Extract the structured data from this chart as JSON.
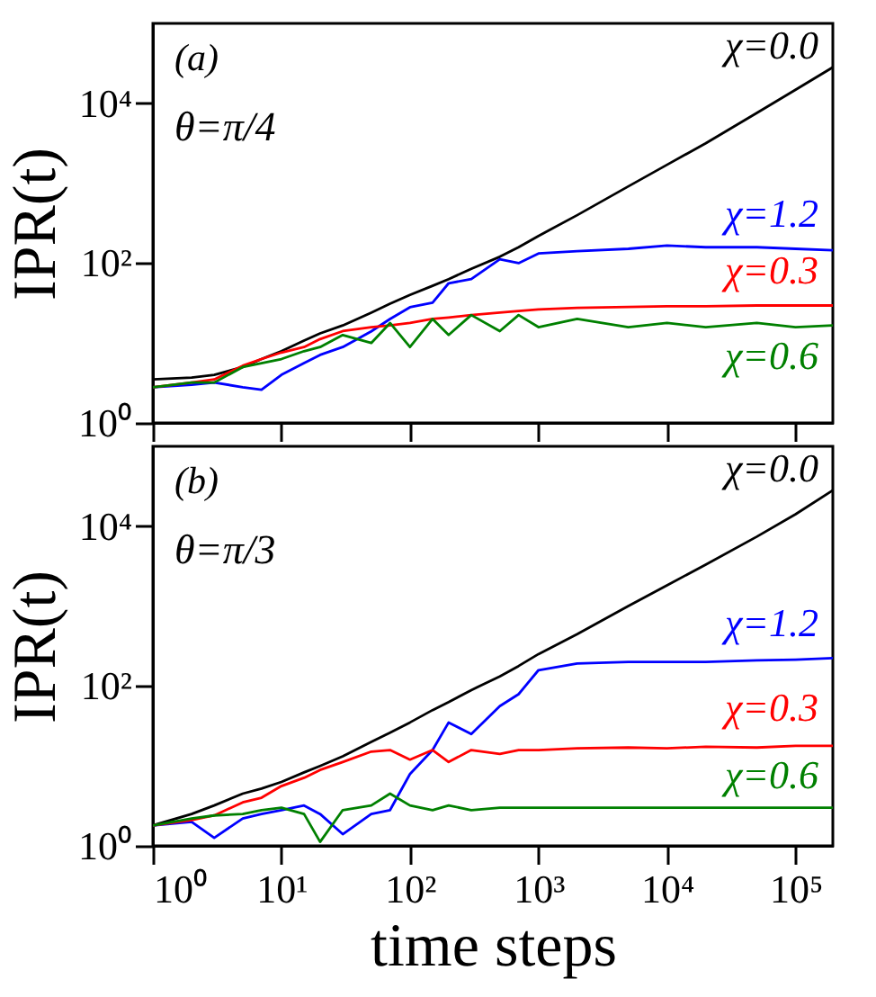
{
  "chart_data": [
    {
      "type": "line",
      "annotations": [
        "(a)",
        "θ=π/4"
      ],
      "ylabel": "IPR(t)",
      "log": "xy",
      "tick_labels": "y",
      "xlim": [
        1,
        195000
      ],
      "ylim": [
        1,
        100000
      ],
      "xticks": [
        {
          "value": 1,
          "label": null
        },
        {
          "value": 10,
          "label": null
        },
        {
          "value": 100,
          "label": null
        },
        {
          "value": 1000,
          "label": null
        },
        {
          "value": 10000,
          "label": null
        },
        {
          "value": 100000,
          "label": null
        }
      ],
      "yticks": [
        {
          "value": 1,
          "label": "10⁰"
        },
        {
          "value": 100,
          "label": "10²"
        },
        {
          "value": 10000,
          "label": "10⁴"
        }
      ],
      "x": [
        1,
        2,
        3,
        5,
        7,
        10,
        15,
        20,
        30,
        50,
        70,
        100,
        150,
        200,
        300,
        500,
        700,
        1000,
        2000,
        5000,
        10000,
        20000,
        50000,
        100000,
        195000
      ],
      "series": [
        {
          "name": "χ=0.0",
          "color": "#000000",
          "values": [
            3.5,
            3.7,
            4,
            5,
            6.3,
            7.9,
            10.7,
            13.2,
            16.6,
            24,
            31,
            40,
            52,
            63,
            85,
            120,
            158,
            219,
            398,
            912,
            1700,
            3160,
            7590,
            14800,
            28200
          ]
        },
        {
          "name": "χ=1.2",
          "color": "#0000ff",
          "values": [
            2.8,
            3,
            3.2,
            2.8,
            2.6,
            4,
            5.6,
            7.1,
            8.9,
            14,
            20,
            28,
            32,
            56,
            63,
            112,
            100,
            132,
            141,
            151,
            166,
            158,
            158,
            151,
            145
          ]
        },
        {
          "name": "χ=0.3",
          "color": "#ff0000",
          "values": [
            2.8,
            3.2,
            3.5,
            5.2,
            6.3,
            7.6,
            8.9,
            11.2,
            14.1,
            15.8,
            16.6,
            17.8,
            20,
            20.9,
            22.4,
            24,
            25.1,
            26.3,
            27.5,
            28.2,
            28.8,
            28.8,
            29.5,
            29.5,
            29.5
          ]
        },
        {
          "name": "χ=0.6",
          "color": "#008000",
          "values": [
            2.8,
            3.2,
            3.2,
            5,
            5.6,
            6.3,
            7.9,
            8.9,
            12.6,
            10,
            17.8,
            8.9,
            20,
            12.6,
            22.4,
            14.1,
            22.4,
            15.8,
            20,
            15.8,
            17.8,
            15.8,
            17.8,
            15.8,
            16.6
          ]
        }
      ]
    },
    {
      "type": "line",
      "annotations": [
        "(b)",
        "θ=π/3"
      ],
      "xlabel": "time steps",
      "ylabel": "IPR(t)",
      "log": "xy",
      "xlim": [
        1,
        195000
      ],
      "ylim": [
        1,
        100000
      ],
      "xticks": [
        {
          "value": 1,
          "label": "10⁰"
        },
        {
          "value": 10,
          "label": "10¹"
        },
        {
          "value": 100,
          "label": "10²"
        },
        {
          "value": 1000,
          "label": "10³"
        },
        {
          "value": 10000,
          "label": "10⁴"
        },
        {
          "value": 100000,
          "label": "10⁵"
        }
      ],
      "yticks": [
        {
          "value": 1,
          "label": "10⁰"
        },
        {
          "value": 100,
          "label": "10²"
        },
        {
          "value": 10000,
          "label": "10⁴"
        }
      ],
      "x": [
        1,
        2,
        3,
        5,
        7,
        10,
        15,
        20,
        30,
        50,
        70,
        100,
        150,
        200,
        300,
        500,
        700,
        1000,
        2000,
        5000,
        10000,
        20000,
        50000,
        100000,
        195000
      ],
      "series": [
        {
          "name": "χ=0.0",
          "color": "#000000",
          "values": [
            1.8,
            2.5,
            3.2,
            4.5,
            5.2,
            6.3,
            8.3,
            10,
            13.2,
            20,
            26,
            35,
            50,
            63,
            89,
            132,
            178,
            251,
            447,
            1000,
            1820,
            3310,
            7410,
            14100,
            28200
          ]
        },
        {
          "name": "χ=1.2",
          "color": "#0000ff",
          "values": [
            1.8,
            2,
            1.26,
            2.2,
            2.5,
            2.8,
            3.2,
            2.5,
            1.4,
            2.5,
            2.8,
            7.9,
            15.8,
            35,
            25,
            56,
            79,
            158,
            191,
            200,
            200,
            200,
            209,
            214,
            224
          ]
        },
        {
          "name": "χ=0.3",
          "color": "#ff0000",
          "values": [
            1.8,
            2.1,
            2.4,
            3.5,
            4,
            5.6,
            7.1,
            8.9,
            11.2,
            15.1,
            15.8,
            12,
            15.8,
            11.2,
            15.8,
            14.1,
            15.8,
            15.8,
            16.6,
            17,
            16.6,
            17.4,
            17,
            17.8,
            17.8
          ]
        },
        {
          "name": "χ=0.6",
          "color": "#008000",
          "values": [
            1.8,
            2.2,
            2.4,
            2.5,
            2.8,
            3,
            2.5,
            1.12,
            2.8,
            3.2,
            4.5,
            3.2,
            2.8,
            3.2,
            2.8,
            3,
            3,
            3,
            3,
            3,
            3,
            3,
            3,
            3,
            3
          ]
        }
      ]
    }
  ]
}
